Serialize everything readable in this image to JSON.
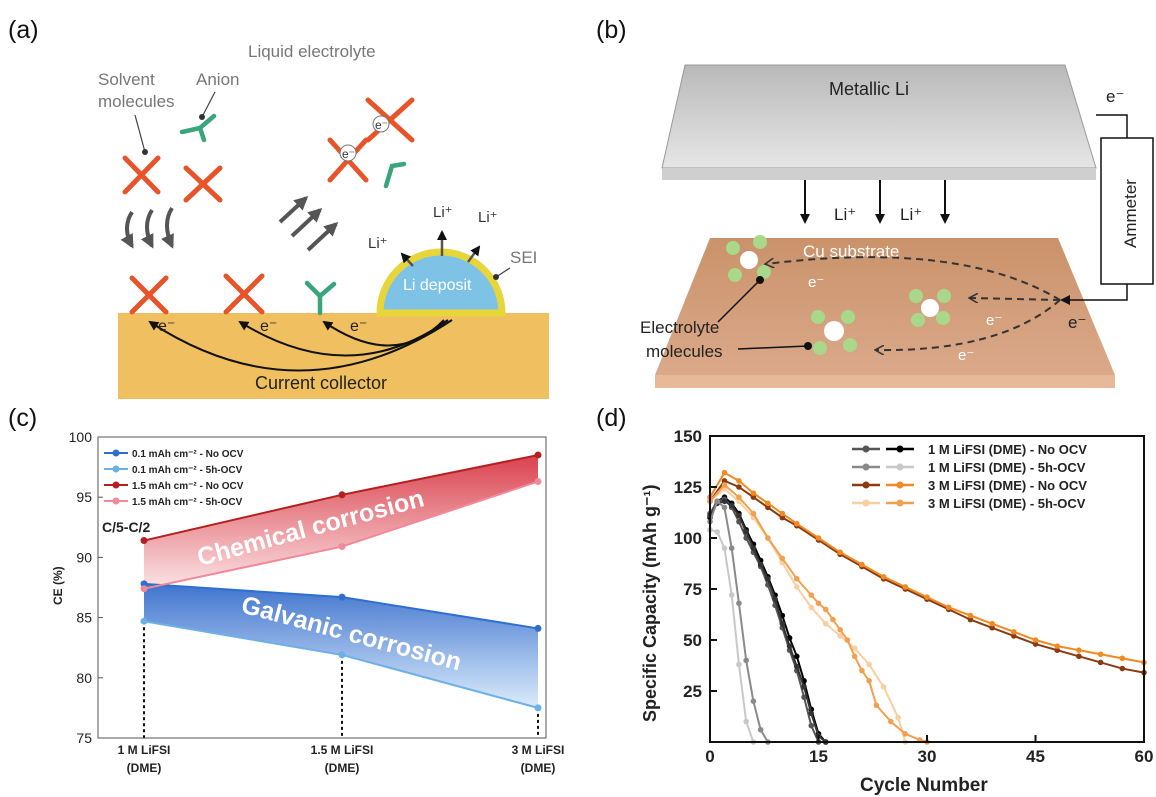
{
  "panels": {
    "a": {
      "label": "(a)",
      "liquid_electrolyte": "Liquid electrolyte",
      "solvent_molecules": [
        "Solvent",
        "molecules"
      ],
      "anion": "Anion",
      "electron": "e⁻",
      "li_plus": "Li⁺",
      "sei": "SEI",
      "li_deposit": "Li deposit",
      "current_collector": "Current collector"
    },
    "b": {
      "label": "(b)",
      "metallic_li": "Metallic Li",
      "ammeter": "Ammeter",
      "li_plus": "Li⁺",
      "electron": "e⁻",
      "cu_substrate": "Cu substrate",
      "electrolyte_molecules": [
        "Electrolyte",
        "molecules"
      ]
    },
    "c": {
      "label": "(c)"
    },
    "d": {
      "label": "(d)"
    }
  },
  "colors": {
    "electrolyte_orange": "#f0c060",
    "li_deposit_blue": "#7ec3e6",
    "sei_yellow": "#e8d53a",
    "solvent_orange": "#e8542a",
    "anion_green": "#3aa57a",
    "cu_brown": "#d7a27a",
    "chem_red": "#b3201f",
    "galv_blue": "#2f6fd0",
    "pink": "#f08a98",
    "light_blue": "#6cb0ea"
  },
  "chart_data": [
    {
      "type": "line",
      "panel": "c",
      "condition_label": "C/5-C/2",
      "ylabel": "CE (%)",
      "xlabel": "",
      "ylim": [
        75,
        100
      ],
      "yticks": [
        75,
        80,
        85,
        90,
        95,
        100
      ],
      "categories": [
        "1 M LiFSI\n(DME)",
        "1.5 M LiFSI\n(DME)",
        "3 M LiFSI\n(DME)"
      ],
      "category_lines": [
        [
          "1 M LiFSI",
          "(DME)"
        ],
        [
          "1.5 M LiFSI",
          "(DME)"
        ],
        [
          "3 M LiFSI",
          "(DME)"
        ]
      ],
      "series": [
        {
          "name": "0.1 mAh cm⁻² - No OCV",
          "color": "#2f6fd0",
          "values": [
            87.8,
            86.7,
            84.1
          ]
        },
        {
          "name": "0.1 mAh cm⁻² - 5h-OCV",
          "color": "#6cb0ea",
          "values": [
            84.7,
            81.9,
            77.5
          ]
        },
        {
          "name": "1.5 mAh cm⁻² - No OCV",
          "color": "#b3201f",
          "values": [
            91.4,
            95.2,
            98.5
          ]
        },
        {
          "name": "1.5 mAh cm⁻² - 5h-OCV",
          "color": "#f08a98",
          "values": [
            87.4,
            90.9,
            96.3
          ]
        }
      ],
      "annotations": [
        "Chemical corrosion",
        "Galvanic corrosion"
      ],
      "legend": "top-left",
      "grid": false
    },
    {
      "type": "line",
      "panel": "d",
      "xlabel": "Cycle Number",
      "ylabel": "Specific Capacity (mAh g⁻¹)",
      "xlim": [
        0,
        60
      ],
      "ylim": [
        0,
        150
      ],
      "xticks": [
        0,
        15,
        30,
        45,
        60
      ],
      "yticks": [
        25,
        50,
        75,
        100,
        125,
        150
      ],
      "legend": "top-right",
      "grid": false,
      "legend_entries": [
        {
          "name": "1 M LiFSI (DME) - No OCV",
          "colors": [
            "#555555",
            "#000000"
          ]
        },
        {
          "name": "1 M LiFSI (DME) - 5h-OCV",
          "colors": [
            "#8a8a8a",
            "#c8c8c8"
          ]
        },
        {
          "name": "3 M LiFSI (DME) - No OCV",
          "colors": [
            "#8b3a12",
            "#f28a22"
          ]
        },
        {
          "name": "3 M LiFSI (DME) - 5h-OCV",
          "colors": [
            "#f8cfa0",
            "#f2a050"
          ]
        }
      ],
      "series": [
        {
          "group": "1 M LiFSI (DME) - No OCV",
          "color": "#000000",
          "x": [
            0,
            1,
            2,
            3,
            4,
            5,
            6,
            7,
            8,
            9,
            10,
            11,
            12,
            13,
            14,
            15,
            16
          ],
          "y": [
            110,
            118,
            120,
            117,
            112,
            104,
            97,
            89,
            81,
            72,
            62,
            51,
            42,
            30,
            16,
            4,
            0
          ]
        },
        {
          "group": "1 M LiFSI (DME) - No OCV",
          "color": "#555555",
          "x": [
            0,
            1,
            2,
            3,
            4,
            5,
            6,
            7,
            8,
            9,
            10,
            11,
            12,
            13,
            14,
            15
          ],
          "y": [
            112,
            118,
            119,
            115,
            108,
            100,
            93,
            86,
            77,
            67,
            56,
            45,
            35,
            22,
            8,
            0
          ]
        },
        {
          "group": "1 M LiFSI (DME) - No OCV",
          "color": "#333333",
          "x": [
            0,
            1,
            2,
            3,
            4,
            5,
            6,
            7,
            8,
            9,
            10,
            11,
            12,
            13,
            14,
            15,
            16
          ],
          "y": [
            111,
            117,
            118,
            116,
            111,
            103,
            95,
            87,
            80,
            70,
            58,
            47,
            37,
            27,
            14,
            3,
            0
          ]
        },
        {
          "group": "1 M LiFSI (DME) - 5h-OCV",
          "color": "#8a8a8a",
          "x": [
            0,
            1,
            2,
            3,
            4,
            5,
            6,
            7,
            8
          ],
          "y": [
            108,
            118,
            115,
            95,
            68,
            40,
            20,
            6,
            0
          ]
        },
        {
          "group": "1 M LiFSI (DME) - 5h-OCV",
          "color": "#c8c8c8",
          "x": [
            0,
            1,
            2,
            3,
            4,
            5,
            6
          ],
          "y": [
            104,
            103,
            95,
            72,
            38,
            10,
            0
          ]
        },
        {
          "group": "3 M LiFSI (DME) - No OCV",
          "color": "#8b3a12",
          "x": [
            0,
            2,
            4,
            6,
            8,
            10,
            12,
            15,
            18,
            21,
            24,
            27,
            30,
            33,
            36,
            39,
            42,
            45,
            48,
            51,
            54,
            57,
            60
          ],
          "y": [
            118,
            128,
            125,
            120,
            115,
            110,
            106,
            99,
            92,
            86,
            80,
            75,
            70,
            65,
            60,
            56,
            52,
            48,
            45,
            42,
            39,
            36,
            34
          ]
        },
        {
          "group": "3 M LiFSI (DME) - No OCV",
          "color": "#f28a22",
          "x": [
            0,
            2,
            4,
            6,
            8,
            10,
            12,
            15,
            18,
            21,
            24,
            27,
            30,
            33,
            36,
            39,
            42,
            45,
            48,
            51,
            54,
            57,
            60
          ],
          "y": [
            120,
            132,
            128,
            122,
            117,
            112,
            107,
            100,
            93,
            87,
            81,
            76,
            71,
            66,
            62,
            58,
            54,
            50,
            47,
            45,
            43,
            41,
            39
          ]
        },
        {
          "group": "3 M LiFSI (DME) - 5h-OCV",
          "color": "#f8cfa0",
          "x": [
            0,
            2,
            4,
            6,
            8,
            10,
            12,
            14,
            16,
            18,
            20,
            22,
            24,
            26,
            27
          ],
          "y": [
            118,
            124,
            118,
            110,
            100,
            88,
            76,
            66,
            58,
            52,
            46,
            38,
            27,
            12,
            0
          ]
        },
        {
          "group": "3 M LiFSI (DME) - 5h-OCV",
          "color": "#f2a050",
          "x": [
            0,
            2,
            4,
            6,
            8,
            10,
            12,
            14,
            15,
            16,
            17,
            18,
            19,
            20,
            21,
            22,
            23,
            25,
            27,
            29,
            30
          ],
          "y": [
            118,
            126,
            120,
            112,
            100,
            90,
            80,
            72,
            68,
            65,
            60,
            55,
            50,
            42,
            35,
            30,
            18,
            10,
            4,
            1,
            0
          ]
        }
      ]
    }
  ]
}
